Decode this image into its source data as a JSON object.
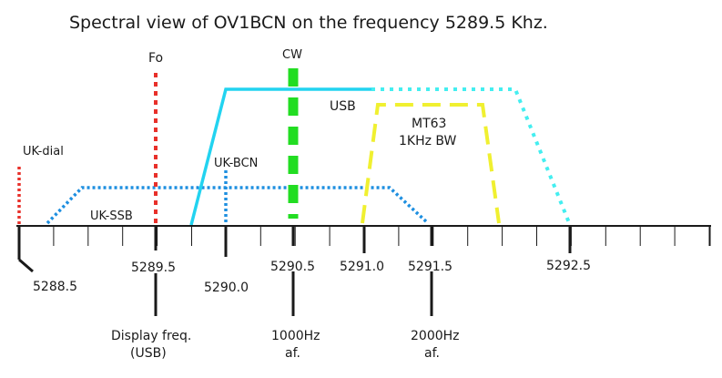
{
  "title": "Spectral view of OV1BCN on the frequency 5289.5 Khz.",
  "colors": {
    "axis": "#1a1a1a",
    "fo": "#e8302a",
    "uk_dial": "#e8302a",
    "uk_ssb": "#1e8fe0",
    "uk_bcn": "#1e8fe0",
    "usb": "#22d3f0",
    "usb_dotted": "#44eef0",
    "cw": "#22dd22",
    "mt63": "#f0f030"
  },
  "labels": {
    "fo": "Fo",
    "cw": "CW",
    "usb": "USB",
    "mt63_line1": "MT63",
    "mt63_line2": "1KHz BW",
    "uk_dial": "UK-dial",
    "uk_bcn": "UK-BCN",
    "uk_ssb": "UK-SSB"
  },
  "freq_labels": {
    "f5288_5": "5288.5",
    "f5289_5": "5289.5",
    "f5290_0": "5290.0",
    "f5290_5": "5290.5",
    "f5291_0": "5291.0",
    "f5291_5": "5291.5",
    "f5292_5": "5292.5"
  },
  "notes": {
    "display_line1": "Display freq.",
    "display_line2": "(USB)",
    "af1000_line1": "1000Hz",
    "af1000_line2": "af.",
    "af2000_line1": "2000Hz",
    "af2000_line2": "af."
  }
}
